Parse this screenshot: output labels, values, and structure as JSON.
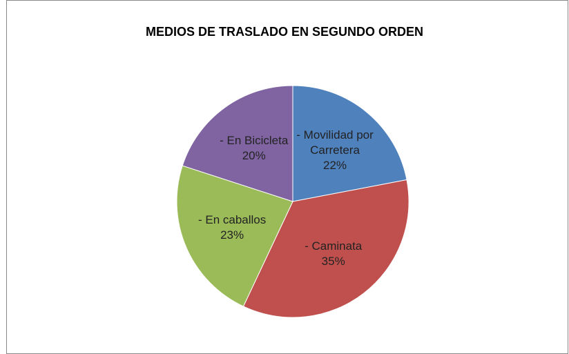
{
  "chart_data": {
    "type": "pie",
    "title": "MEDIOS DE TRASLADO EN SEGUNDO ORDEN",
    "categories": [
      "- Movilidad por Carretera",
      "- Caminata",
      "-  En caballos",
      "-  En Bicicleta"
    ],
    "values": [
      22,
      35,
      23,
      20
    ],
    "value_labels": [
      "22%",
      "35%",
      "23%",
      "20%"
    ],
    "colors": [
      "#4f81bd",
      "#c0504d",
      "#9bbb59",
      "#8064a2"
    ]
  }
}
